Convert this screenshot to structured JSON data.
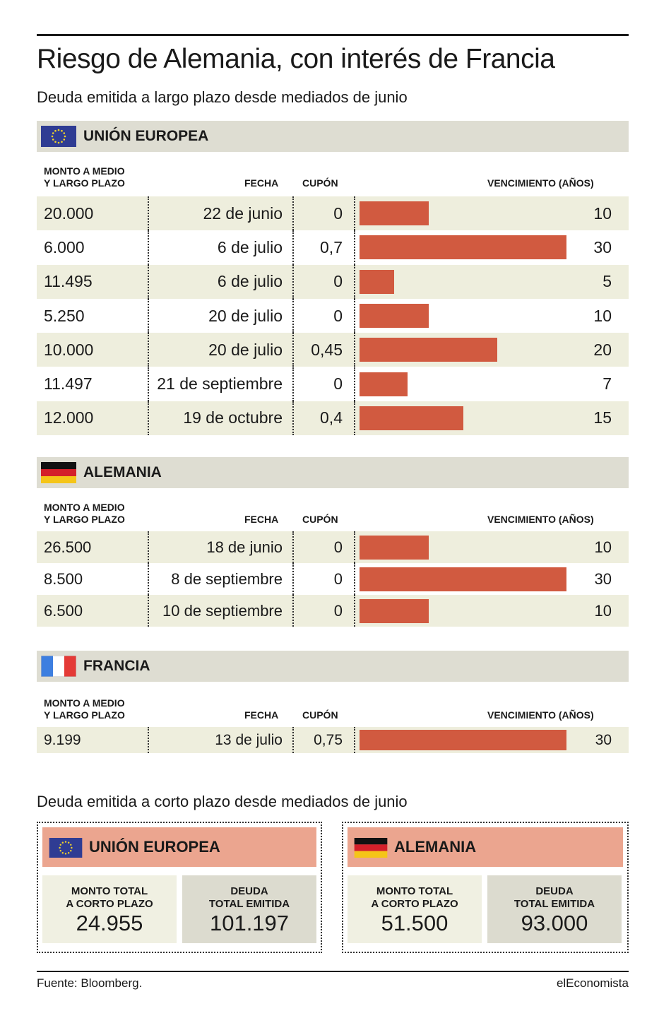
{
  "title": "Riesgo de Alemania, con interés de Francia",
  "subtitle": "Deuda emitida a largo plazo desde mediados de junio",
  "colors": {
    "bar": "#d15a40",
    "band": "#deddd2",
    "row_shade": "#eeeedd",
    "box_head": "#eba58f",
    "tile_light": "#f0f0e2",
    "tile_dark": "#dcdbcf"
  },
  "headers": {
    "amount_line1": "MONTO A MEDIO",
    "amount_line2": "Y LARGO PLAZO",
    "date": "FECHA",
    "coupon": "CUPÓN",
    "maturity": "VENCIMIENTO (AÑOS)"
  },
  "chart_data": [
    {
      "type": "bar",
      "title": "UNIÓN EUROPEA",
      "flag": "eu-flag-icon",
      "rows": [
        {
          "amount": "20.000",
          "date": "22 de junio",
          "coupon": "0",
          "years": 10
        },
        {
          "amount": "6.000",
          "date": "6 de julio",
          "coupon": "0,7",
          "years": 30
        },
        {
          "amount": "11.495",
          "date": "6 de julio",
          "coupon": "0",
          "years": 5
        },
        {
          "amount": "5.250",
          "date": "20 de julio",
          "coupon": "0",
          "years": 10
        },
        {
          "amount": "10.000",
          "date": "20 de julio",
          "coupon": "0,45",
          "years": 20
        },
        {
          "amount": "11.497",
          "date": "21 de septiembre",
          "coupon": "0",
          "years": 7
        },
        {
          "amount": "12.000",
          "date": "19 de octubre",
          "coupon": "0,4",
          "years": 15
        }
      ]
    },
    {
      "type": "bar",
      "title": "ALEMANIA",
      "flag": "germany-flag-icon",
      "rows": [
        {
          "amount": "26.500",
          "date": "18 de junio",
          "coupon": "0",
          "years": 10
        },
        {
          "amount": "8.500",
          "date": "8 de septiembre",
          "coupon": "0",
          "years": 30
        },
        {
          "amount": "6.500",
          "date": "10 de septiembre",
          "coupon": "0",
          "years": 10
        }
      ]
    },
    {
      "type": "bar",
      "title": "FRANCIA",
      "flag": "france-flag-icon",
      "rows": [
        {
          "amount": "9.199",
          "date": "13 de julio",
          "coupon": "0,75",
          "years": 30
        }
      ]
    }
  ],
  "short_term": {
    "title": "Deuda emitida a corto plazo desde mediados de junio",
    "boxes": [
      {
        "name": "UNIÓN EUROPEA",
        "flag": "eu-flag-icon",
        "total_label_1": "MONTO TOTAL",
        "total_label_2": "A CORTO PLAZO",
        "total_value": "24.955",
        "debt_label_1": "DEUDA",
        "debt_label_2": "TOTAL EMITIDA",
        "debt_value": "101.197"
      },
      {
        "name": "ALEMANIA",
        "flag": "germany-flag-icon",
        "total_label_1": "MONTO TOTAL",
        "total_label_2": "A CORTO PLAZO",
        "total_value": "51.500",
        "debt_label_1": "DEUDA",
        "debt_label_2": "TOTAL EMITIDA",
        "debt_value": "93.000"
      }
    ]
  },
  "footer": {
    "source": "Fuente: Bloomberg.",
    "brand": "elEconomista"
  }
}
